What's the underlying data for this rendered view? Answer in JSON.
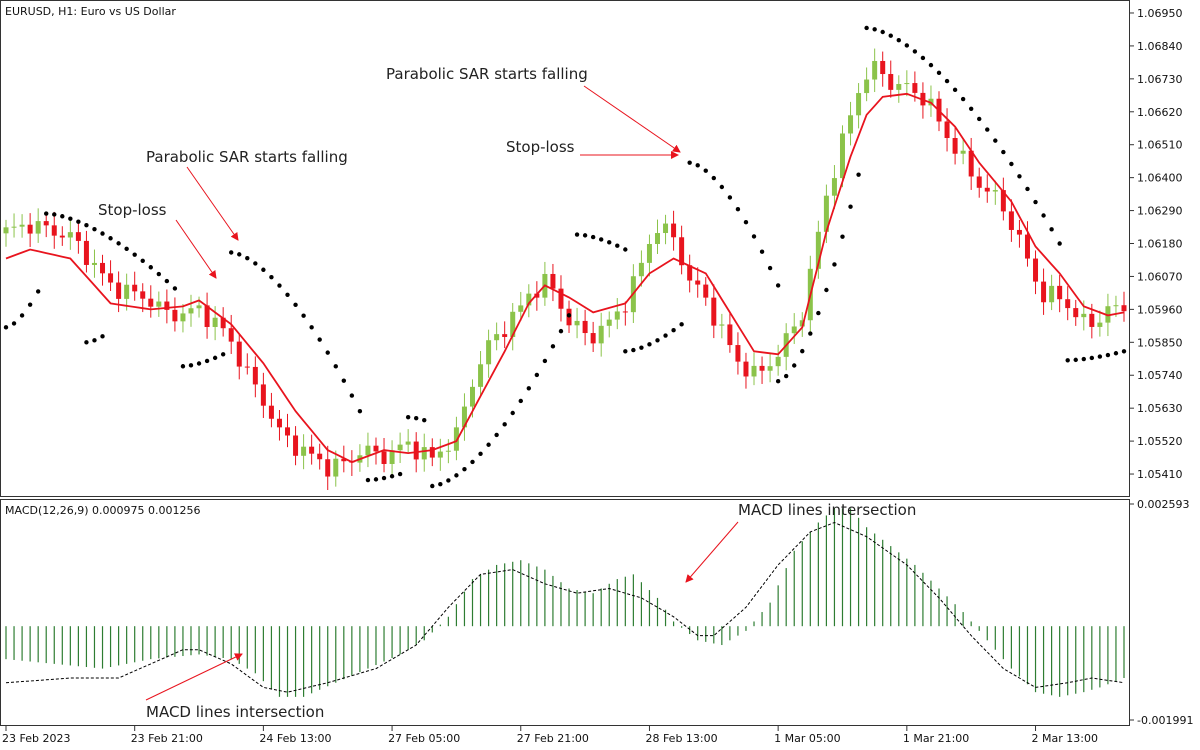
{
  "chart_data": [
    {
      "type": "candlestick",
      "title": "EURUSD, H1:  Euro vs US Dollar",
      "ylim": [
        1.0535,
        1.0698
      ],
      "y_ticks": [
        "1.06950",
        "1.06840",
        "1.06730",
        "1.06620",
        "1.06510",
        "1.06400",
        "1.06290",
        "1.06180",
        "1.06070",
        "1.05960",
        "1.05850",
        "1.05740",
        "1.05630",
        "1.05520",
        "1.05410"
      ],
      "y_tick_values": [
        1.0695,
        1.0684,
        1.0673,
        1.0662,
        1.0651,
        1.064,
        1.0629,
        1.0618,
        1.0607,
        1.0596,
        1.0585,
        1.0574,
        1.0563,
        1.0552,
        1.0541
      ],
      "x_ticks": [
        "23 Feb 2023",
        "23 Feb 21:00",
        "24 Feb 13:00",
        "27 Feb 05:00",
        "27 Feb 21:00",
        "28 Feb 13:00",
        "1 Mar 05:00",
        "1 Mar 21:00",
        "2 Mar 13:00"
      ],
      "x_tick_bar_index": [
        0,
        16,
        32,
        48,
        64,
        80,
        96,
        112,
        128
      ],
      "bar_count": 140,
      "ma_anchors": [
        [
          0,
          1.0613
        ],
        [
          3,
          1.0616
        ],
        [
          8,
          1.0613
        ],
        [
          13,
          1.0598
        ],
        [
          18,
          1.0596
        ],
        [
          22,
          1.0597
        ],
        [
          24,
          1.0599
        ],
        [
          28,
          1.0591
        ],
        [
          32,
          1.0578
        ],
        [
          36,
          1.0562
        ],
        [
          40,
          1.0549
        ],
        [
          43,
          1.0545
        ],
        [
          47,
          1.0549
        ],
        [
          50,
          1.0548
        ],
        [
          53,
          1.0549
        ],
        [
          56,
          1.0552
        ],
        [
          59,
          1.0567
        ],
        [
          62,
          1.0582
        ],
        [
          65,
          1.0598
        ],
        [
          67,
          1.0604
        ],
        [
          70,
          1.06
        ],
        [
          73,
          1.0595
        ],
        [
          77,
          1.0598
        ],
        [
          80,
          1.0608
        ],
        [
          83,
          1.0613
        ],
        [
          87,
          1.0608
        ],
        [
          90,
          1.0595
        ],
        [
          93,
          1.0582
        ],
        [
          96,
          1.0581
        ],
        [
          99,
          1.059
        ],
        [
          102,
          1.0622
        ],
        [
          105,
          1.0647
        ],
        [
          107,
          1.0661
        ],
        [
          109,
          1.0667
        ],
        [
          112,
          1.0668
        ],
        [
          115,
          1.0665
        ],
        [
          118,
          1.0657
        ],
        [
          121,
          1.0645
        ],
        [
          125,
          1.0632
        ],
        [
          128,
          1.0617
        ],
        [
          131,
          1.0608
        ],
        [
          134,
          1.0597
        ],
        [
          137,
          1.0594
        ],
        [
          139,
          1.0595
        ]
      ],
      "dev_anchors": [
        [
          0,
          0.0009
        ],
        [
          5,
          0.0008
        ],
        [
          10,
          0.0007
        ],
        [
          15,
          0.0005
        ],
        [
          18,
          0.0003
        ],
        [
          20,
          -0.0002
        ],
        [
          24,
          -0.0003
        ],
        [
          27,
          -0.0004
        ],
        [
          30,
          -0.001
        ],
        [
          34,
          -0.0015
        ],
        [
          37,
          -0.001
        ],
        [
          41,
          -0.0004
        ],
        [
          44,
          0.0003
        ],
        [
          47,
          -0.0002
        ],
        [
          50,
          0.0003
        ],
        [
          53,
          -0.0003
        ],
        [
          56,
          0.0002
        ],
        [
          58,
          0.001
        ],
        [
          60,
          0.0012
        ],
        [
          62,
          0.0008
        ],
        [
          64,
          0.0004
        ],
        [
          66,
          0.0002
        ],
        [
          68,
          0.0
        ],
        [
          70,
          -0.0008
        ],
        [
          72,
          -0.0009
        ],
        [
          75,
          -0.0005
        ],
        [
          78,
          0.0003
        ],
        [
          81,
          0.0014
        ],
        [
          83,
          0.0007
        ],
        [
          85,
          -0.0005
        ],
        [
          88,
          -0.001
        ],
        [
          91,
          -0.0012
        ],
        [
          94,
          -0.0006
        ],
        [
          96,
          0.0
        ],
        [
          99,
          0.0005
        ],
        [
          102,
          0.0012
        ],
        [
          104,
          0.0013
        ],
        [
          106,
          0.0015
        ],
        [
          108,
          0.0012
        ],
        [
          110,
          0.0004
        ],
        [
          112,
          0.0002
        ],
        [
          114,
          0.0001
        ],
        [
          117,
          -0.0006
        ],
        [
          120,
          -0.0008
        ],
        [
          123,
          -0.0005
        ],
        [
          126,
          -0.0008
        ],
        [
          129,
          -0.0013
        ],
        [
          131,
          -0.0008
        ],
        [
          133,
          -0.0006
        ],
        [
          135,
          -0.0005
        ],
        [
          137,
          0.0002
        ],
        [
          139,
          0.0001
        ]
      ],
      "sar_segments": [
        {
          "from": 0,
          "to": 4,
          "start": 1.059,
          "end": 1.0602,
          "side": "below"
        },
        {
          "from": 5,
          "to": 21,
          "start": 1.0628,
          "end": 1.0603,
          "side": "above"
        },
        {
          "from": 10,
          "to": 12,
          "start": 1.0585,
          "end": 1.0587,
          "side": "below"
        },
        {
          "from": 22,
          "to": 27,
          "start": 1.0577,
          "end": 1.0581,
          "side": "below"
        },
        {
          "from": 28,
          "to": 44,
          "start": 1.0615,
          "end": 1.0562,
          "side": "above"
        },
        {
          "from": 45,
          "to": 49,
          "start": 1.0539,
          "end": 1.0541,
          "side": "below"
        },
        {
          "from": 50,
          "to": 52,
          "start": 1.056,
          "end": 1.0559,
          "side": "above"
        },
        {
          "from": 53,
          "to": 70,
          "start": 1.0537,
          "end": 1.0594,
          "side": "below"
        },
        {
          "from": 71,
          "to": 77,
          "start": 1.0621,
          "end": 1.0616,
          "side": "above"
        },
        {
          "from": 77,
          "to": 84,
          "start": 1.0582,
          "end": 1.0591,
          "side": "below"
        },
        {
          "from": 85,
          "to": 96,
          "start": 1.0645,
          "end": 1.0604,
          "side": "above"
        },
        {
          "from": 96,
          "to": 106,
          "start": 1.0572,
          "end": 1.0641,
          "side": "below"
        },
        {
          "from": 107,
          "to": 131,
          "start": 1.069,
          "end": 1.0618,
          "side": "above"
        },
        {
          "from": 132,
          "to": 139,
          "start": 1.0579,
          "end": 1.0582,
          "side": "below"
        }
      ],
      "colors": {
        "bull": "#8bc34a",
        "bear": "#e8141e",
        "ma": "#e8141e",
        "sar": "#000000"
      },
      "annotations": [
        {
          "text": "Parabolic SAR starts falling",
          "value": 1.0636,
          "bar": 17
        },
        {
          "text": "Stop-loss",
          "value": 1.0627,
          "bar": 11
        },
        {
          "text": "Parabolic SAR starts falling",
          "value": 1.068,
          "bar": 46
        },
        {
          "text": "Stop-loss",
          "value": 1.0647,
          "bar": 60
        }
      ]
    },
    {
      "type": "histogram+line",
      "title": "MACD(12,26,9) 0.000975 0.001256",
      "ylim": [
        -0.001991,
        0.002593
      ],
      "y_ticks": [
        "0.002593",
        "-0.001991"
      ],
      "y_tick_values": [
        0.002593,
        -0.001991
      ],
      "histogram_anchors": [
        [
          0,
          -0.0007
        ],
        [
          6,
          -0.0008
        ],
        [
          12,
          -0.0009
        ],
        [
          18,
          -0.0007
        ],
        [
          24,
          -0.0006
        ],
        [
          28,
          -0.0007
        ],
        [
          31,
          -0.001
        ],
        [
          34,
          -0.0015
        ],
        [
          37,
          -0.0015
        ],
        [
          41,
          -0.0012
        ],
        [
          45,
          -0.0009
        ],
        [
          49,
          -0.0006
        ],
        [
          52,
          -0.0003
        ],
        [
          55,
          0.0002
        ],
        [
          58,
          0.001
        ],
        [
          61,
          0.0013
        ],
        [
          64,
          0.0014
        ],
        [
          67,
          0.0012
        ],
        [
          70,
          0.0008
        ],
        [
          73,
          0.0007
        ],
        [
          76,
          0.001
        ],
        [
          78,
          0.0011
        ],
        [
          81,
          0.0006
        ],
        [
          83,
          0.0001
        ],
        [
          86,
          -0.0003
        ],
        [
          89,
          -0.0004
        ],
        [
          92,
          -0.0001
        ],
        [
          95,
          0.0005
        ],
        [
          98,
          0.0016
        ],
        [
          101,
          0.0022
        ],
        [
          103,
          0.0025
        ],
        [
          105,
          0.0025
        ],
        [
          107,
          0.0021
        ],
        [
          110,
          0.0017
        ],
        [
          113,
          0.0013
        ],
        [
          116,
          0.0008
        ],
        [
          119,
          0.0003
        ],
        [
          122,
          -0.0003
        ],
        [
          125,
          -0.0009
        ],
        [
          128,
          -0.0014
        ],
        [
          131,
          -0.0015
        ],
        [
          134,
          -0.0014
        ],
        [
          136,
          -0.0013
        ],
        [
          139,
          -0.0011
        ]
      ],
      "signal_anchors": [
        [
          0,
          -0.0012
        ],
        [
          8,
          -0.0011
        ],
        [
          14,
          -0.0011
        ],
        [
          18,
          -0.0008
        ],
        [
          22,
          -0.0005
        ],
        [
          24,
          -0.0005
        ],
        [
          28,
          -0.0008
        ],
        [
          32,
          -0.0013
        ],
        [
          35,
          -0.0014
        ],
        [
          40,
          -0.0012
        ],
        [
          46,
          -0.0009
        ],
        [
          51,
          -0.0004
        ],
        [
          55,
          0.0004
        ],
        [
          59,
          0.0011
        ],
        [
          63,
          0.0012
        ],
        [
          67,
          0.0009
        ],
        [
          71,
          0.0007
        ],
        [
          75,
          0.0008
        ],
        [
          79,
          0.0006
        ],
        [
          83,
          0.0002
        ],
        [
          86,
          -0.0002
        ],
        [
          88,
          -0.0002
        ],
        [
          92,
          0.0004
        ],
        [
          96,
          0.0013
        ],
        [
          100,
          0.002
        ],
        [
          103,
          0.0022
        ],
        [
          107,
          0.0019
        ],
        [
          112,
          0.0013
        ],
        [
          116,
          0.0006
        ],
        [
          120,
          -0.0002
        ],
        [
          124,
          -0.0009
        ],
        [
          128,
          -0.0013
        ],
        [
          132,
          -0.0012
        ],
        [
          135,
          -0.0011
        ],
        [
          139,
          -0.0012
        ]
      ],
      "colors": {
        "histogram": "#2e7d32",
        "signal": "#000000"
      },
      "annotations": [
        {
          "text": "MACD lines intersection",
          "value": 0.00265,
          "bar": 73
        },
        {
          "text": "MACD lines intersection",
          "value": -0.0018,
          "bar": 17
        }
      ]
    }
  ]
}
